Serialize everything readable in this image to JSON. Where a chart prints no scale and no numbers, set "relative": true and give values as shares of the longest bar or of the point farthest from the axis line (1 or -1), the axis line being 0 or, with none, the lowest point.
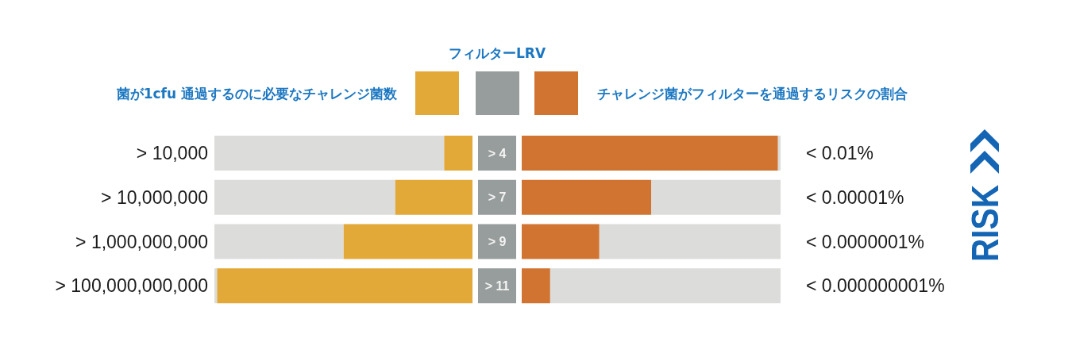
{
  "chart_data": [
    {
      "type": "bar",
      "orientation": "horizontal",
      "stacked": true,
      "relative": true,
      "categories": [
        "> 10,000",
        "> 10,000,000",
        "> 1,000,000,000",
        "> 100,000,000,000"
      ],
      "series": [
        {
          "name": "菌が1cfu 通過するのに必要なチャレンジ菌数",
          "color": "#e2a838",
          "values": [
            0.11,
            0.3,
            0.5,
            0.99
          ]
        },
        {
          "color": "#dcdcda",
          "values": [
            0.89,
            0.7,
            0.5,
            0.01
          ]
        }
      ],
      "legend": "top left"
    },
    {
      "type": "bar",
      "orientation": "horizontal",
      "relative": true,
      "categories": [
        "> 4",
        "> 7",
        "> 9",
        "> 11"
      ],
      "series": [
        {
          "name": "フィルターLRV",
          "color": "#979d9c",
          "values": [
            1,
            1,
            1,
            1
          ]
        }
      ],
      "legend": "top"
    },
    {
      "type": "bar",
      "orientation": "horizontal",
      "stacked": true,
      "relative": true,
      "categories": [
        "< 0.01%",
        "< 0.00001%",
        "< 0.0000001%",
        "< 0.000000001%"
      ],
      "series": [
        {
          "name": "チャレンジ菌がフィルターを通過するリスクの割合",
          "color": "#d17431",
          "values": [
            0.99,
            0.5,
            0.3,
            0.11
          ]
        },
        {
          "color": "#dcdcda",
          "values": [
            0.01,
            0.5,
            0.7,
            0.89
          ]
        }
      ],
      "legend": "top right",
      "annotations": [
        "RISK"
      ]
    }
  ]
}
